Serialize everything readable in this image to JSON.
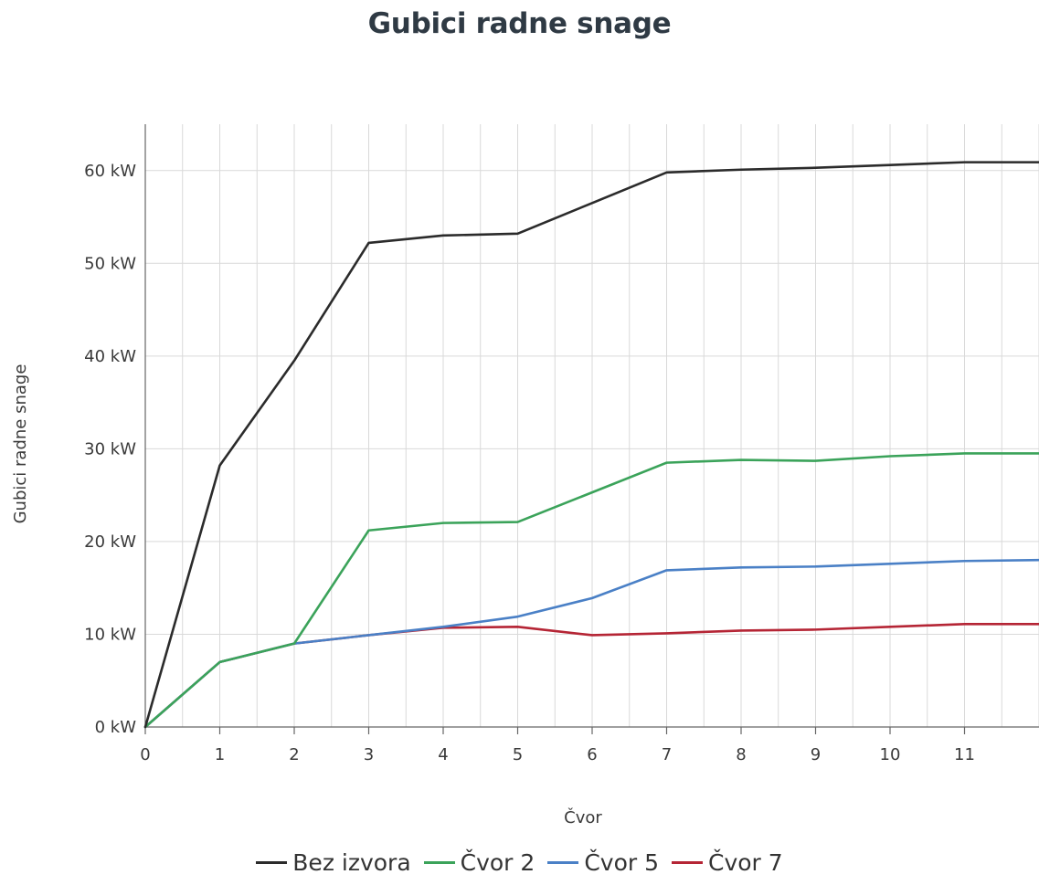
{
  "chart_data": {
    "type": "line",
    "title": "Gubici radne snage",
    "xlabel": "Čvor",
    "ylabel": "Gubici radne snage",
    "x": [
      0,
      1,
      2,
      3,
      4,
      5,
      6,
      7,
      8,
      9,
      10,
      11,
      12
    ],
    "x_ticks": [
      "0",
      "1",
      "2",
      "3",
      "4",
      "5",
      "6",
      "7",
      "8",
      "9",
      "10",
      "11"
    ],
    "y_ticks": [
      "0 kW",
      "10 kW",
      "20 kW",
      "30 kW",
      "40 kW",
      "50 kW",
      "60 kW"
    ],
    "xlim": [
      0,
      12
    ],
    "ylim": [
      0,
      65
    ],
    "grid": true,
    "legend_position": "bottom-center",
    "series": [
      {
        "name": "Bez izvora",
        "color": "#2b2b2b",
        "values": [
          0,
          28.2,
          39.5,
          52.2,
          53,
          53.2,
          56.5,
          59.8,
          60.1,
          60.3,
          60.6,
          60.9,
          60.9
        ]
      },
      {
        "name": "Čvor 2",
        "color": "#3ba35a",
        "values": [
          0,
          7,
          9,
          21.2,
          22,
          22.1,
          25.3,
          28.5,
          28.8,
          28.7,
          29.2,
          29.5,
          29.5
        ]
      },
      {
        "name": "Čvor 5",
        "color": "#4a80c6",
        "values": [
          0,
          7,
          9,
          9.9,
          10.8,
          11.9,
          13.9,
          16.9,
          17.2,
          17.3,
          17.6,
          17.9,
          18
        ]
      },
      {
        "name": "Čvor 7",
        "color": "#b52535",
        "values": [
          0,
          7,
          9,
          9.9,
          10.7,
          10.8,
          9.9,
          10.1,
          10.4,
          10.5,
          10.8,
          11.1,
          11.1
        ]
      }
    ]
  }
}
